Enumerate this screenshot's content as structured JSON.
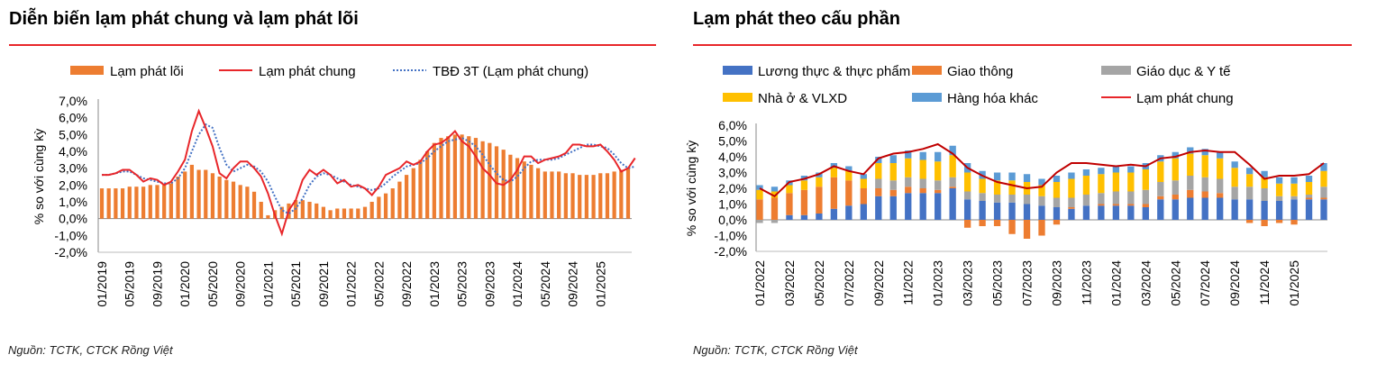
{
  "left": {
    "title": "Diễn biến lạm phát chung và lạm phát lõi",
    "source": "Nguồn: TCTK, CTCK Rồng Việt"
  },
  "right": {
    "title": "Lạm phát theo cấu phần",
    "source": "Nguồn: TCTK, CTCK Rồng Việt"
  },
  "colors": {
    "rule": "#e8262a",
    "core_bar": "#ed7d31",
    "headline_line": "#e8262a",
    "ma_line": "#4472c4",
    "food": "#4472c4",
    "transport": "#ed7d31",
    "education_health": "#a5a5a5",
    "housing": "#ffc000",
    "other_goods": "#5b9bd5"
  },
  "chart_data": [
    {
      "type": "bar",
      "title": "Diễn biến lạm phát chung và lạm phát lõi",
      "ylabel": "% so với cùng kỳ",
      "ylim": [
        -2,
        7
      ],
      "yticks": [
        "-2,0%",
        "-1,0%",
        "0,0%",
        "1,0%",
        "2,0%",
        "3,0%",
        "4,0%",
        "5,0%",
        "6,0%",
        "7,0%"
      ],
      "x_tick_labels": [
        "01/2019",
        "05/2019",
        "09/2019",
        "01/2020",
        "05/2020",
        "09/2020",
        "01/2021",
        "05/2021",
        "09/2021",
        "01/2022",
        "05/2022",
        "09/2022",
        "01/2023",
        "05/2023",
        "09/2023",
        "01/2024",
        "05/2024",
        "09/2024",
        "01/2025"
      ],
      "legend": [
        "Lạm phát lõi",
        "Lạm phát chung",
        "TBĐ 3T (Lạm phát chung)"
      ],
      "series": [
        {
          "name": "Lạm phát lõi",
          "kind": "bar",
          "values": [
            1.8,
            1.8,
            1.8,
            1.8,
            1.9,
            1.9,
            1.9,
            2.0,
            2.0,
            2.0,
            2.1,
            2.5,
            2.8,
            3.2,
            2.9,
            2.9,
            2.7,
            2.5,
            2.3,
            2.2,
            2.0,
            1.9,
            1.6,
            1.0,
            0.2,
            0.5,
            0.7,
            0.9,
            1.1,
            1.1,
            1.0,
            0.9,
            0.7,
            0.5,
            0.6,
            0.6,
            0.6,
            0.6,
            0.7,
            1.0,
            1.3,
            1.5,
            1.8,
            2.2,
            2.6,
            3.0,
            3.5,
            4.0,
            4.5,
            4.8,
            4.9,
            5.0,
            5.0,
            4.9,
            4.8,
            4.6,
            4.5,
            4.3,
            4.1,
            3.8,
            3.6,
            3.4,
            3.2,
            3.0,
            2.8,
            2.8,
            2.8,
            2.7,
            2.7,
            2.6,
            2.6,
            2.6,
            2.7,
            2.7,
            2.8,
            2.9,
            3.0
          ]
        },
        {
          "name": "Lạm phát chung",
          "kind": "line",
          "values": [
            2.6,
            2.6,
            2.7,
            2.9,
            2.9,
            2.6,
            2.2,
            2.4,
            2.3,
            2.0,
            2.2,
            2.8,
            3.5,
            5.2,
            6.4,
            5.4,
            4.3,
            2.7,
            2.4,
            3.0,
            3.4,
            3.4,
            3.0,
            2.5,
            1.5,
            0.2,
            -0.9,
            0.5,
            1.1,
            2.3,
            2.9,
            2.6,
            2.9,
            2.6,
            2.1,
            2.3,
            1.9,
            2.0,
            1.8,
            1.4,
            1.9,
            2.6,
            2.8,
            3.0,
            3.4,
            3.2,
            3.4,
            4.0,
            4.4,
            4.5,
            4.8,
            5.2,
            4.6,
            4.3,
            3.7,
            3.0,
            2.6,
            2.1,
            2.0,
            2.3,
            2.9,
            3.7,
            3.7,
            3.3,
            3.5,
            3.6,
            3.7,
            3.9,
            4.4,
            4.4,
            4.3,
            4.3,
            4.4,
            4.0,
            3.5,
            2.8,
            3.0,
            3.6
          ]
        },
        {
          "name": "TBĐ 3T (Lạm phát chung)",
          "kind": "line",
          "values": [
            2.6,
            2.6,
            2.7,
            2.8,
            2.8,
            2.6,
            2.4,
            2.3,
            2.2,
            2.1,
            2.1,
            2.4,
            3.0,
            4.0,
            5.0,
            5.6,
            5.4,
            4.2,
            3.2,
            2.8,
            3.0,
            3.2,
            3.1,
            2.8,
            2.2,
            1.3,
            0.5,
            0.3,
            0.6,
            1.2,
            2.0,
            2.5,
            2.7,
            2.6,
            2.4,
            2.2,
            2.0,
            1.9,
            1.8,
            1.7,
            1.8,
            2.1,
            2.5,
            2.8,
            3.1,
            3.2,
            3.3,
            3.6,
            4.0,
            4.3,
            4.6,
            4.7,
            4.8,
            4.6,
            4.3,
            3.8,
            3.2,
            2.7,
            2.3,
            2.2,
            2.5,
            3.0,
            3.4,
            3.5,
            3.5,
            3.5,
            3.6,
            3.8,
            4.0,
            4.2,
            4.4,
            4.4,
            4.3,
            4.2,
            3.8,
            3.3,
            3.0,
            3.1
          ]
        }
      ]
    },
    {
      "type": "bar",
      "stacked": true,
      "title": "Lạm phát theo cấu phần",
      "ylabel": "% so với cùng kỳ",
      "ylim": [
        -2,
        6
      ],
      "yticks": [
        "-2,0%",
        "-1,0%",
        "0,0%",
        "1,0%",
        "2,0%",
        "3,0%",
        "4,0%",
        "5,0%",
        "6,0%"
      ],
      "x_tick_labels": [
        "01/2022",
        "03/2022",
        "05/2022",
        "07/2022",
        "09/2022",
        "11/2022",
        "01/2023",
        "03/2023",
        "05/2023",
        "07/2023",
        "09/2023",
        "11/2023",
        "01/2024",
        "03/2024",
        "05/2024",
        "07/2024",
        "09/2024",
        "11/2024",
        "01/2025"
      ],
      "legend": [
        "Lương thực & thực phẩm",
        "Giao thông",
        "Giáo dục & Y tế",
        "Nhà ở & VLXD",
        "Hàng hóa khác",
        "Lạm phát chung"
      ],
      "series": [
        {
          "name": "Lương thực & thực phẩm",
          "values": [
            0.0,
            0.0,
            0.3,
            0.3,
            0.4,
            0.7,
            0.9,
            1.0,
            1.5,
            1.5,
            1.7,
            1.7,
            1.7,
            2.0,
            1.3,
            1.2,
            1.1,
            1.1,
            1.0,
            0.9,
            0.8,
            0.7,
            0.9,
            0.9,
            0.9,
            0.9,
            0.8,
            1.3,
            1.3,
            1.4,
            1.4,
            1.4,
            1.3,
            1.3,
            1.2,
            1.2,
            1.3,
            1.3,
            1.3
          ]
        },
        {
          "name": "Giao thông",
          "values": [
            1.3,
            1.4,
            1.4,
            1.6,
            1.7,
            2.0,
            1.6,
            1.0,
            0.5,
            0.4,
            0.4,
            0.3,
            0.2,
            0.1,
            -0.5,
            -0.4,
            -0.4,
            -0.9,
            -1.2,
            -1.0,
            -0.3,
            0.1,
            0.0,
            0.1,
            0.1,
            0.1,
            0.2,
            0.2,
            0.3,
            0.5,
            0.4,
            0.3,
            0.0,
            -0.2,
            -0.4,
            -0.2,
            -0.3,
            0.1,
            0.1
          ]
        },
        {
          "name": "Giáo dục & Y tế",
          "values": [
            -0.2,
            -0.2,
            0.0,
            0.0,
            0.0,
            0.0,
            0.0,
            0.0,
            0.6,
            0.6,
            0.6,
            0.6,
            0.6,
            0.6,
            0.5,
            0.5,
            0.5,
            0.5,
            0.6,
            0.6,
            0.6,
            0.6,
            0.7,
            0.7,
            0.8,
            0.8,
            0.9,
            0.9,
            0.9,
            0.9,
            0.9,
            0.9,
            0.8,
            0.8,
            0.8,
            0.3,
            0.2,
            0.2,
            0.7
          ]
        },
        {
          "name": "Nhà ở & VLXD",
          "values": [
            0.6,
            0.4,
            0.5,
            0.6,
            0.6,
            0.6,
            0.6,
            0.6,
            1.0,
            1.1,
            1.2,
            1.2,
            1.2,
            1.4,
            1.2,
            0.9,
            0.9,
            0.9,
            0.8,
            0.7,
            1.0,
            1.2,
            1.2,
            1.2,
            1.2,
            1.2,
            1.3,
            1.3,
            1.4,
            1.4,
            1.4,
            1.3,
            1.2,
            0.8,
            0.7,
            0.8,
            0.8,
            0.8,
            1.0
          ]
        },
        {
          "name": "Hàng hóa khác",
          "values": [
            0.3,
            0.3,
            0.3,
            0.3,
            0.3,
            0.3,
            0.3,
            0.3,
            0.4,
            0.5,
            0.5,
            0.5,
            0.6,
            0.6,
            0.6,
            0.5,
            0.5,
            0.5,
            0.5,
            0.4,
            0.4,
            0.4,
            0.4,
            0.4,
            0.4,
            0.4,
            0.4,
            0.4,
            0.4,
            0.4,
            0.4,
            0.4,
            0.4,
            0.4,
            0.4,
            0.4,
            0.4,
            0.4,
            0.5
          ]
        },
        {
          "name": "Lạm phát chung",
          "kind": "line",
          "values": [
            2.0,
            1.5,
            2.4,
            2.6,
            2.9,
            3.4,
            3.1,
            2.9,
            3.9,
            4.2,
            4.3,
            4.5,
            4.8,
            4.2,
            3.3,
            2.8,
            2.4,
            2.2,
            2.0,
            2.1,
            3.0,
            3.6,
            3.6,
            3.5,
            3.4,
            3.5,
            3.4,
            3.9,
            4.0,
            4.3,
            4.4,
            4.3,
            4.3,
            3.5,
            2.6,
            2.8,
            2.8,
            2.9,
            3.6
          ]
        }
      ]
    }
  ]
}
